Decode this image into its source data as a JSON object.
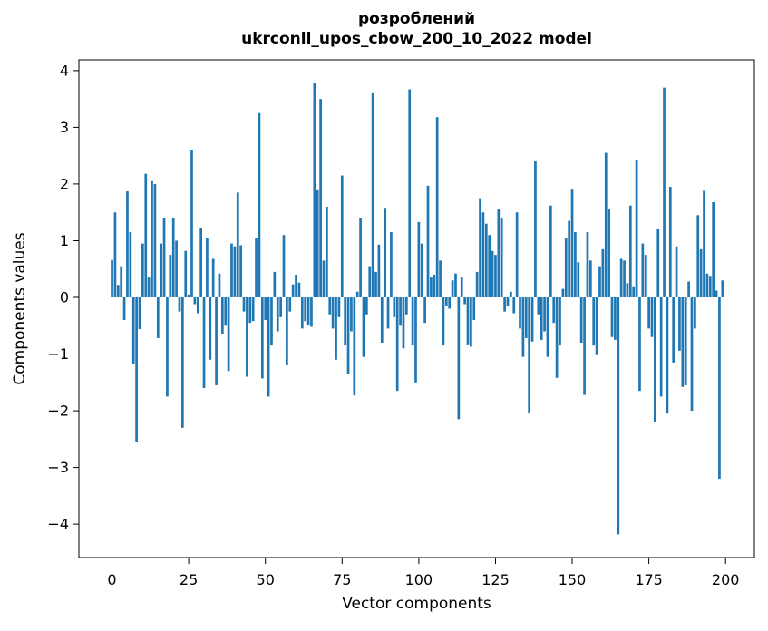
{
  "figure": {
    "title_line1": "розроблений",
    "title_line2": "ukrconll_upos_cbow_200_10_2022 model"
  },
  "chart_data": {
    "type": "bar",
    "title": "розроблений\nukrconll_upos_cbow_200_10_2022 model",
    "xlabel": "Vector components",
    "ylabel": "Components values",
    "bar_color": "#1f77b4",
    "n_components": 200,
    "xticks": [
      0,
      25,
      50,
      75,
      100,
      125,
      150,
      175,
      200
    ],
    "yticks": [
      -4,
      -3,
      -2,
      -1,
      0,
      1,
      2,
      3,
      4
    ],
    "xlim": [
      -10.8,
      209.4
    ],
    "ylim": [
      -4.59,
      4.19
    ],
    "grid": false,
    "legend": null,
    "values": [
      0.66,
      1.5,
      0.22,
      0.55,
      -0.4,
      1.87,
      1.15,
      -1.17,
      -2.55,
      -0.56,
      0.95,
      2.18,
      0.35,
      2.05,
      2.0,
      -0.72,
      0.95,
      1.4,
      -1.75,
      0.75,
      1.4,
      1.0,
      -0.25,
      -2.3,
      0.82,
      0.05,
      2.6,
      -0.12,
      -0.28,
      1.22,
      -1.6,
      1.05,
      -1.1,
      0.68,
      -1.55,
      0.42,
      -0.64,
      -0.5,
      -1.3,
      0.95,
      0.9,
      1.85,
      0.92,
      -0.25,
      -1.4,
      -0.45,
      -0.42,
      1.05,
      3.25,
      -1.43,
      -0.4,
      -1.75,
      -0.85,
      0.45,
      -0.6,
      -0.35,
      1.1,
      -1.2,
      -0.25,
      0.23,
      0.4,
      0.26,
      -0.55,
      -0.42,
      -0.48,
      -0.52,
      3.78,
      1.89,
      3.5,
      0.65,
      1.6,
      -0.3,
      -0.55,
      -1.1,
      -0.35,
      2.15,
      -0.85,
      -1.35,
      -0.6,
      -1.73,
      0.1,
      1.4,
      -1.05,
      -0.3,
      0.55,
      3.6,
      0.45,
      0.93,
      -0.8,
      1.58,
      -0.55,
      1.15,
      -0.35,
      -1.65,
      -0.5,
      -0.9,
      -0.3,
      3.67,
      -0.85,
      -1.5,
      1.33,
      0.95,
      -0.45,
      1.97,
      0.35,
      0.4,
      3.18,
      0.65,
      -0.85,
      -0.15,
      -0.2,
      0.3,
      0.42,
      -2.15,
      0.35,
      -0.12,
      -0.83,
      -0.87,
      -0.4,
      0.45,
      1.75,
      1.5,
      1.3,
      1.1,
      0.82,
      0.75,
      1.55,
      1.4,
      -0.25,
      -0.15,
      0.1,
      -0.28,
      1.5,
      -0.55,
      -1.05,
      -0.72,
      -2.05,
      -0.78,
      2.4,
      -0.3,
      -0.75,
      -0.6,
      -1.05,
      1.62,
      -0.45,
      -1.42,
      -0.85,
      0.15,
      1.05,
      1.35,
      1.9,
      1.15,
      0.62,
      -0.8,
      -1.72,
      1.15,
      0.65,
      -0.85,
      -1.02,
      0.55,
      0.85,
      2.55,
      1.55,
      -0.7,
      -0.75,
      -4.18,
      0.68,
      0.65,
      0.25,
      1.62,
      0.18,
      2.43,
      -1.65,
      0.95,
      0.75,
      -0.55,
      -0.7,
      -2.2,
      1.2,
      -1.75,
      3.7,
      -2.05,
      1.95,
      -1.15,
      0.9,
      -0.94,
      -1.58,
      -1.55,
      0.28,
      -2.0,
      -0.55,
      1.45,
      0.85,
      1.88,
      0.42,
      0.38,
      1.68,
      0.12,
      -3.2,
      0.3
    ]
  }
}
